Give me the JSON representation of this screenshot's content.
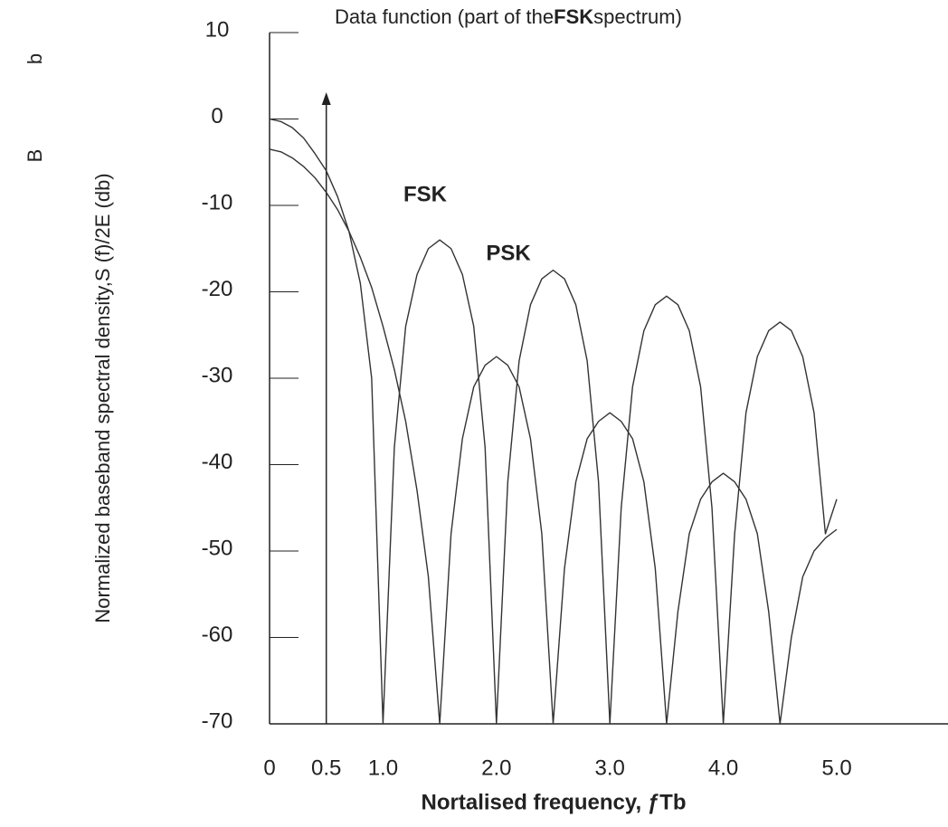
{
  "chart_data": {
    "type": "line",
    "title_prefix": "Data function (part of the",
    "title_emphasis": "FSK",
    "title_suffix": "spectrum)",
    "xlabel": "Nortalised frequency, ƒTb",
    "ylabel": "Normalized baseband spectral density,S  (f)/2E (db)",
    "ylabel_subscripts": [
      "b",
      "B"
    ],
    "x": [
      0,
      0.1,
      0.2,
      0.3,
      0.4,
      0.5,
      0.6,
      0.7,
      0.8,
      0.9,
      1.0,
      1.1,
      1.2,
      1.3,
      1.4,
      1.5,
      1.6,
      1.7,
      1.8,
      1.9,
      2.0,
      2.1,
      2.2,
      2.3,
      2.4,
      2.5,
      2.6,
      2.7,
      2.8,
      2.9,
      3.0,
      3.1,
      3.2,
      3.3,
      3.4,
      3.5,
      3.6,
      3.7,
      3.8,
      3.9,
      4.0,
      4.1,
      4.2,
      4.3,
      4.4,
      4.5,
      4.6,
      4.7,
      4.8,
      4.9,
      5.0
    ],
    "series": [
      {
        "name": "PSK",
        "color": "#333333",
        "values": [
          0,
          -0.3,
          -1,
          -2.2,
          -4,
          -6,
          -9,
          -13,
          -19,
          -30,
          -70,
          -38,
          -24,
          -18,
          -15,
          -14,
          -15,
          -18,
          -24,
          -38,
          -70,
          -42,
          -28,
          -21.5,
          -18.5,
          -17.5,
          -18.5,
          -21.5,
          -28,
          -42,
          -70,
          -45,
          -31,
          -24.5,
          -21.5,
          -20.5,
          -21.5,
          -24.5,
          -31,
          -45,
          -70,
          -48,
          -34,
          -27.5,
          -24.5,
          -23.5,
          -24.5,
          -27.5,
          -34,
          -48,
          -44
        ]
      },
      {
        "name": "FSK",
        "color": "#333333",
        "values": [
          -3.5,
          -3.8,
          -4.5,
          -5.5,
          -6.8,
          -8.5,
          -10.5,
          -13,
          -16,
          -19.5,
          -24,
          -29,
          -35,
          -43,
          -53,
          -70,
          -48,
          -37,
          -31,
          -28.5,
          -27.5,
          -28.5,
          -31,
          -37,
          -48,
          -70,
          -52,
          -42,
          -37,
          -35,
          -34,
          -35,
          -37,
          -42,
          -52,
          -70,
          -57,
          -48,
          -44,
          -42,
          -41,
          -42,
          -44,
          -48,
          -57,
          -70,
          -60,
          -53,
          -50,
          -48.5,
          -47.5
        ]
      }
    ],
    "xlim": [
      0,
      5.0
    ],
    "xticks": [
      0,
      0.5,
      {
        "value": 1,
        "label": "1.0"
      },
      {
        "value": 2,
        "label": "2.0"
      },
      {
        "value": 3,
        "label": "3.0"
      },
      {
        "value": 4,
        "label": "4.0"
      },
      {
        "value": 5,
        "label": "5.0"
      }
    ],
    "ylim": [
      -70,
      10
    ],
    "yticks": [
      10,
      0,
      -10,
      -20,
      -30,
      -40,
      -50,
      -60,
      -70
    ],
    "grid": false
  }
}
